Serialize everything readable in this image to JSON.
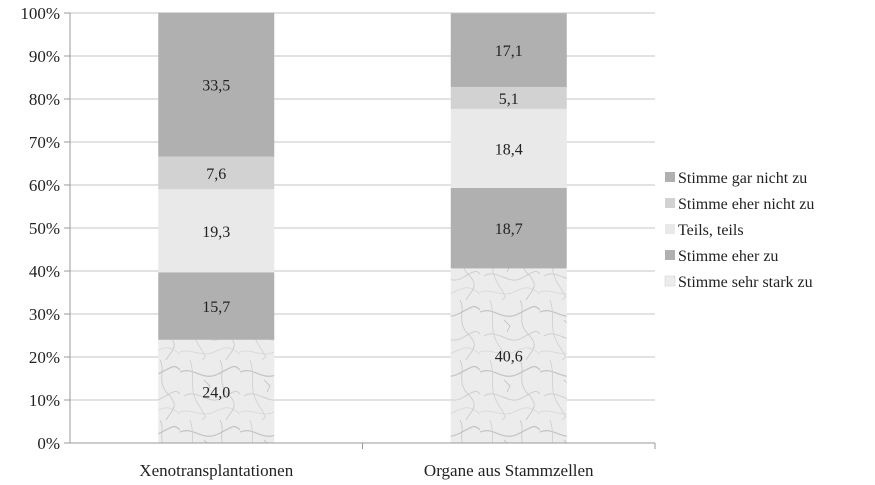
{
  "chart_data": {
    "type": "bar",
    "stacked": true,
    "percent_stacked": true,
    "categories": [
      "Xenotransplantationen",
      "Organe aus Stammzellen"
    ],
    "series": [
      {
        "name": "Stimme sehr stark zu",
        "values": [
          24.0,
          40.6
        ],
        "labels": [
          "24,0",
          "40,6"
        ],
        "color": "#e6e6e6",
        "pattern": "marble"
      },
      {
        "name": "Stimme eher zu",
        "values": [
          15.7,
          18.7
        ],
        "labels": [
          "15,7",
          "18,7"
        ],
        "color": "#b0b0b0"
      },
      {
        "name": "Teils, teils",
        "values": [
          19.3,
          18.4
        ],
        "labels": [
          "19,3",
          "18,4"
        ],
        "color": "#e9e9e9"
      },
      {
        "name": "Stimme eher nicht zu",
        "values": [
          7.6,
          5.1
        ],
        "labels": [
          "7,6",
          "5,1"
        ],
        "color": "#d2d2d2"
      },
      {
        "name": "Stimme gar nicht zu",
        "values": [
          33.5,
          17.1
        ],
        "labels": [
          "33,5",
          "17,1"
        ],
        "color": "#b0b0b0"
      }
    ],
    "legend_order": [
      "Stimme gar nicht zu",
      "Stimme eher nicht zu",
      "Teils, teils",
      "Stimme eher zu",
      "Stimme sehr stark zu"
    ],
    "yticks": [
      "0%",
      "10%",
      "20%",
      "30%",
      "40%",
      "50%",
      "60%",
      "70%",
      "80%",
      "90%",
      "100%"
    ],
    "ylim": [
      0,
      100
    ],
    "grid": true,
    "legend_position": "right",
    "title": "",
    "xlabel": "",
    "ylabel": ""
  }
}
